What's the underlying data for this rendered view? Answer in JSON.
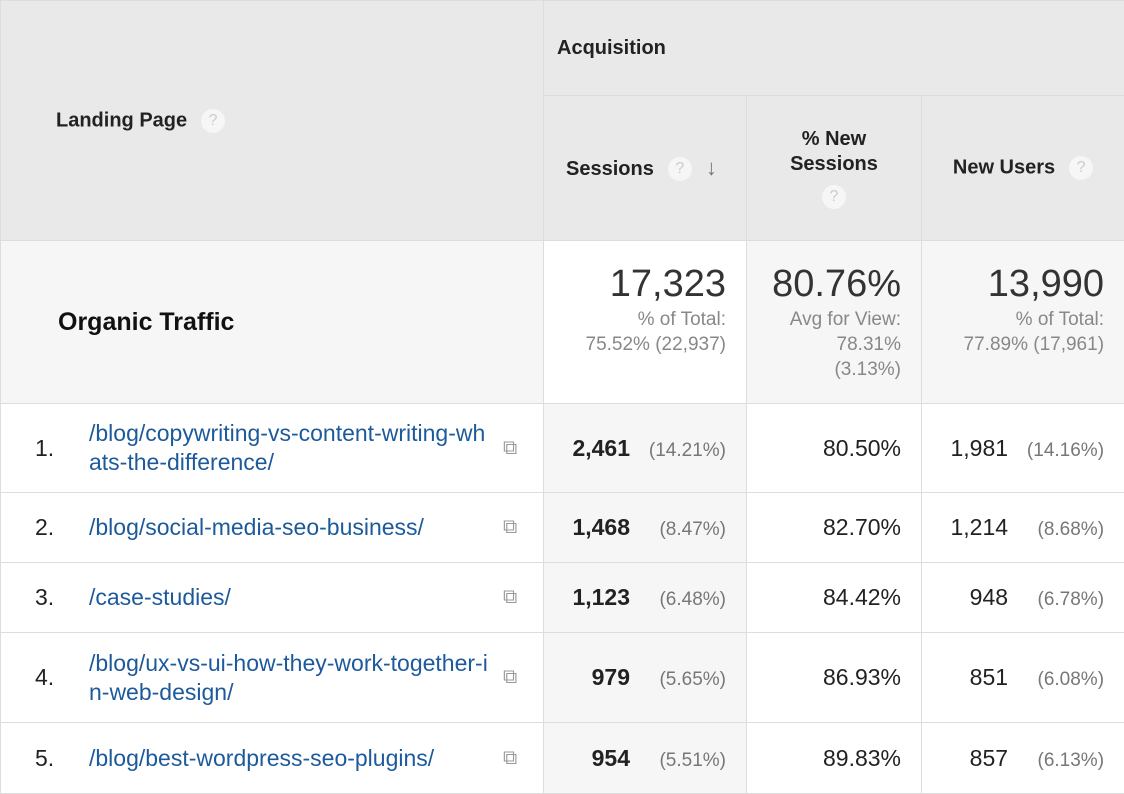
{
  "header": {
    "landing_page": "Landing Page",
    "acquisition": "Acquisition",
    "sessions": "Sessions",
    "new_sessions": "% New Sessions",
    "new_users": "New Users",
    "help": "?",
    "sort": "↓"
  },
  "total": {
    "label": "Organic Traffic",
    "sessions": "17,323",
    "sessions_sub1": "% of Total:",
    "sessions_sub2": "75.52% (22,937)",
    "new_sessions": "80.76%",
    "new_sessions_sub1": "Avg for View:",
    "new_sessions_sub2": "78.31%",
    "new_sessions_sub3": "(3.13%)",
    "new_users": "13,990",
    "new_users_sub1": "% of Total:",
    "new_users_sub2": "77.89% (17,961)"
  },
  "rows": [
    {
      "num": "1.",
      "page": "/blog/copywriting-vs-content-writing-whats-the-difference/",
      "sessions": "2,461",
      "sessions_pct": "(14.21%)",
      "new_sessions": "80.50%",
      "new_users": "1,981",
      "new_users_pct": "(14.16%)"
    },
    {
      "num": "2.",
      "page": "/blog/social-media-seo-business/",
      "sessions": "1,468",
      "sessions_pct": "(8.47%)",
      "new_sessions": "82.70%",
      "new_users": "1,214",
      "new_users_pct": "(8.68%)"
    },
    {
      "num": "3.",
      "page": "/case-studies/",
      "sessions": "1,123",
      "sessions_pct": "(6.48%)",
      "new_sessions": "84.42%",
      "new_users": "948",
      "new_users_pct": "(6.78%)"
    },
    {
      "num": "4.",
      "page": "/blog/ux-vs-ui-how-they-work-together-in-web-design/",
      "sessions": "979",
      "sessions_pct": "(5.65%)",
      "new_sessions": "86.93%",
      "new_users": "851",
      "new_users_pct": "(6.08%)"
    },
    {
      "num": "5.",
      "page": "/blog/best-wordpress-seo-plugins/",
      "sessions": "954",
      "sessions_pct": "(5.51%)",
      "new_sessions": "89.83%",
      "new_users": "857",
      "new_users_pct": "(6.13%)"
    }
  ]
}
